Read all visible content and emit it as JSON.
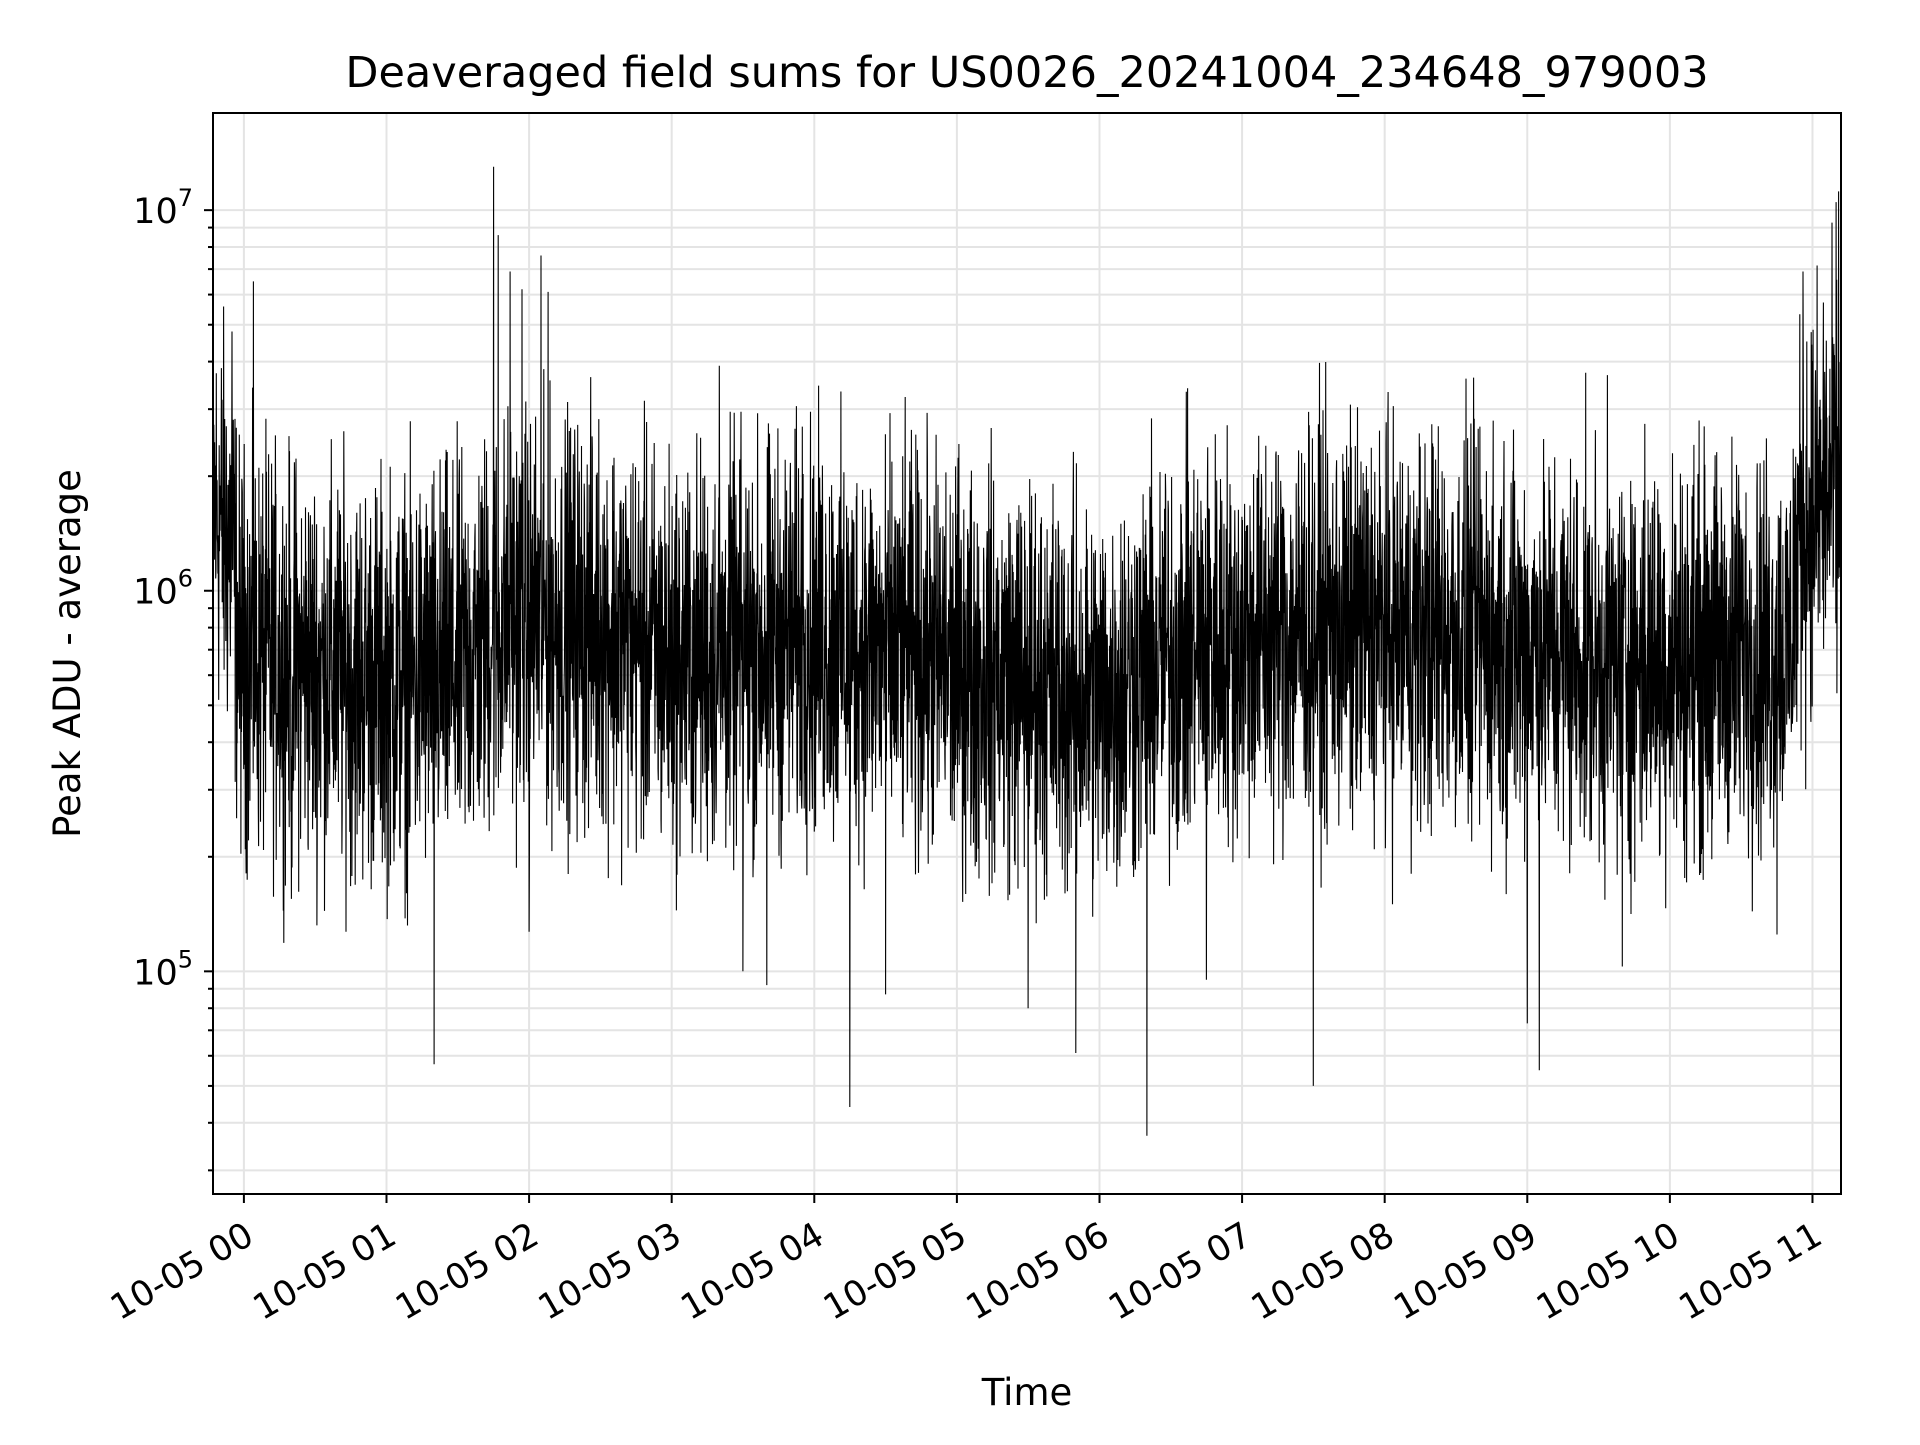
{
  "chart_data": {
    "type": "line",
    "title": "Deaveraged field sums for US0026_20241004_234648_979003",
    "xlabel": "Time",
    "ylabel": "Peak ADU - average",
    "yscale": "log",
    "xlim": [
      "10-04 23:47",
      "10-05 11:12"
    ],
    "ylim": [
      26000,
      18000000
    ],
    "x_tick_labels": [
      "10-05 00",
      "10-05 01",
      "10-05 02",
      "10-05 03",
      "10-05 04",
      "10-05 05",
      "10-05 06",
      "10-05 07",
      "10-05 08",
      "10-05 09",
      "10-05 10",
      "10-05 11"
    ],
    "y_tick_labels": [
      {
        "base": "10",
        "exp": "5",
        "value": 100000
      },
      {
        "base": "10",
        "exp": "6",
        "value": 1000000
      },
      {
        "base": "10",
        "exp": "7",
        "value": 10000000
      }
    ],
    "grid": true,
    "line_color": "#000000",
    "series": [
      {
        "baseline_profile": [
          [
            "10-04 23:47",
            1700000
          ],
          [
            "10-04 23:55",
            1300000
          ],
          [
            "10-04 23:58",
            700000
          ],
          [
            "10-05 00:30",
            620000
          ],
          [
            "10-05 01:00",
            580000
          ],
          [
            "10-05 01:30",
            620000
          ],
          [
            "10-05 01:50",
            850000
          ],
          [
            "10-05 02:30",
            820000
          ],
          [
            "10-05 03:00",
            650000
          ],
          [
            "10-05 04:00",
            760000
          ],
          [
            "10-05 05:00",
            640000
          ],
          [
            "10-05 06:00",
            520000
          ],
          [
            "10-05 06:40",
            720000
          ],
          [
            "10-05 07:30",
            800000
          ],
          [
            "10-05 08:30",
            780000
          ],
          [
            "10-05 09:30",
            650000
          ],
          [
            "10-05 10:50",
            700000
          ],
          [
            "10-05 10:55",
            1500000
          ],
          [
            "10-05 11:12",
            2000000
          ]
        ],
        "peaks": [
          [
            "10-04 23:55",
            4800000
          ],
          [
            "10-05 00:04",
            6500000
          ],
          [
            "10-05 01:45",
            13000000
          ],
          [
            "10-05 01:47",
            8600000
          ],
          [
            "10-05 01:52",
            6900000
          ],
          [
            "10-05 01:57",
            6200000
          ],
          [
            "10-05 02:05",
            7600000
          ],
          [
            "10-05 02:08",
            6100000
          ],
          [
            "10-05 03:20",
            3900000
          ],
          [
            "10-05 03:55",
            2700000
          ],
          [
            "10-05 07:25",
            2300000
          ],
          [
            "10-05 08:40",
            2700000
          ],
          [
            "10-05 10:56",
            6900000
          ],
          [
            "10-05 11:10",
            10500000
          ],
          [
            "10-05 11:11",
            11200000
          ]
        ],
        "dips": [
          [
            "10-05 00:20",
            155000
          ],
          [
            "10-05 01:20",
            57000
          ],
          [
            "10-05 02:00",
            127000
          ],
          [
            "10-05 03:30",
            100000
          ],
          [
            "10-05 03:40",
            92000
          ],
          [
            "10-05 04:15",
            44000
          ],
          [
            "10-05 04:30",
            87000
          ],
          [
            "10-05 05:30",
            80000
          ],
          [
            "10-05 05:50",
            61000
          ],
          [
            "10-05 06:20",
            37000
          ],
          [
            "10-05 06:45",
            95000
          ],
          [
            "10-05 07:30",
            50000
          ],
          [
            "10-05 09:00",
            73000
          ],
          [
            "10-05 09:05",
            55000
          ],
          [
            "10-05 09:40",
            103000
          ],
          [
            "10-05 10:45",
            125000
          ]
        ]
      }
    ]
  }
}
